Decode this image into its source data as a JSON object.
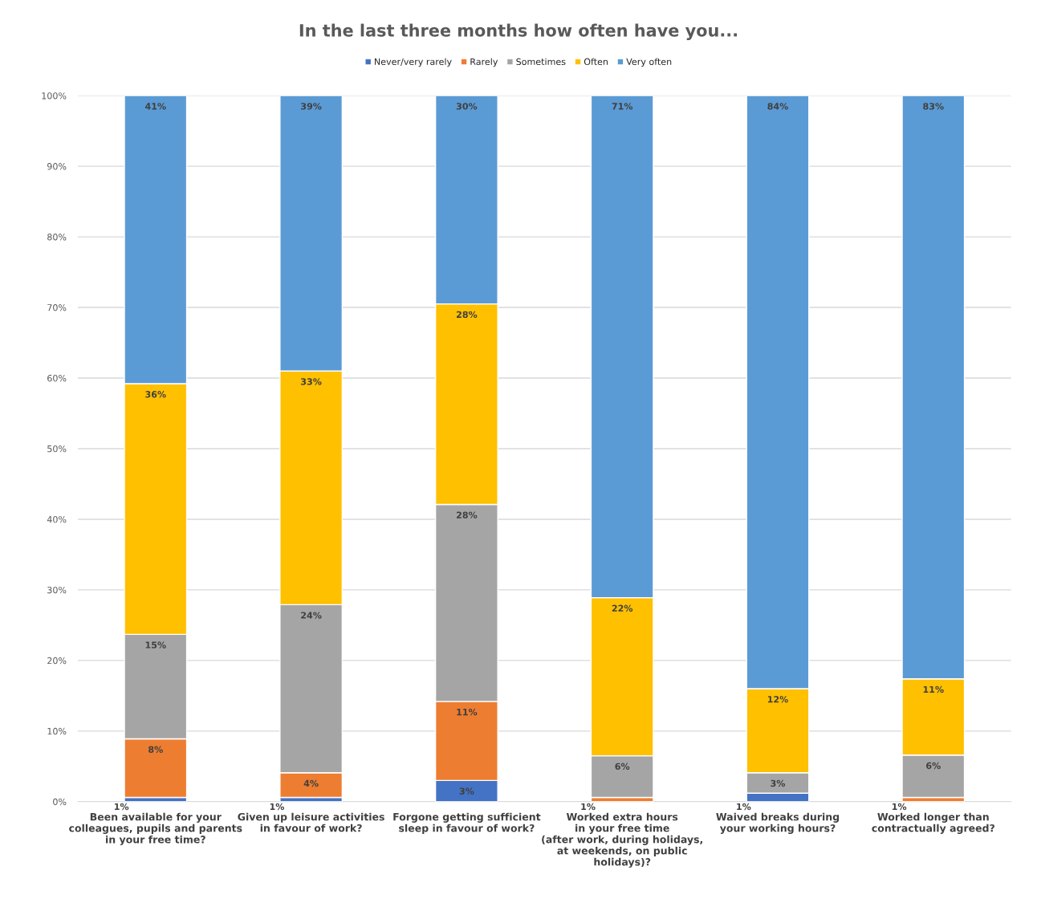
{
  "chart_data": {
    "type": "bar",
    "title": "In the last three months how often have you...",
    "categories": [
      "Been available for your\ncolleagues, pupils and parents\nin your free time?",
      "Given up leisure activities\nin favour of work?",
      "Forgone getting sufficient\nsleep in favour of work?",
      "Worked extra hours\nin your free time\n(after work, during holidays,\nat weekends, on public\nholidays)?",
      "Waived breaks during\nyour working hours?",
      "Worked longer than\ncontractually agreed?"
    ],
    "stacked": true,
    "series": [
      {
        "name": "Never/very rarely",
        "color": "#4472c4",
        "values": [
          0.6,
          0.6,
          3.0,
          0,
          1.2,
          0
        ],
        "value_labels": [
          "1%",
          "1%",
          "3%",
          null,
          "1%",
          null
        ]
      },
      {
        "name": "Rarely",
        "color": "#ed7d31",
        "values": [
          8.3,
          3.5,
          11.2,
          0.6,
          0,
          0.6
        ],
        "value_labels": [
          "8%",
          "4%",
          "11%",
          "1%",
          null,
          "1%"
        ]
      },
      {
        "name": "Sometimes",
        "color": "#a5a5a5",
        "values": [
          14.8,
          23.8,
          27.9,
          5.9,
          2.9,
          6.0
        ],
        "value_labels": [
          "15%",
          "24%",
          "28%",
          "6%",
          "3%",
          "6%"
        ]
      },
      {
        "name": "Often",
        "color": "#ffc000",
        "values": [
          35.5,
          33.1,
          28.4,
          22.4,
          11.9,
          10.8
        ],
        "value_labels": [
          "36%",
          "33%",
          "28%",
          "22%",
          "12%",
          "11%"
        ]
      },
      {
        "name": "Very often",
        "color": "#5b9bd5",
        "values": [
          40.8,
          39.0,
          29.5,
          71.1,
          84.0,
          82.6
        ],
        "value_labels": [
          "41%",
          "39%",
          "30%",
          "71%",
          "84%",
          "83%"
        ]
      }
    ],
    "ylim": [
      0,
      100
    ],
    "yticks": [
      {
        "value": 0,
        "label": "0%"
      },
      {
        "value": 10,
        "label": "10%"
      },
      {
        "value": 20,
        "label": "20%"
      },
      {
        "value": 30,
        "label": "30%"
      },
      {
        "value": 40,
        "label": "40%"
      },
      {
        "value": 50,
        "label": "50%"
      },
      {
        "value": 60,
        "label": "60%"
      },
      {
        "value": 70,
        "label": "70%"
      },
      {
        "value": 80,
        "label": "80%"
      },
      {
        "value": 90,
        "label": "90%"
      },
      {
        "value": 100,
        "label": "100%"
      }
    ],
    "grid": "y",
    "legend": "top"
  }
}
